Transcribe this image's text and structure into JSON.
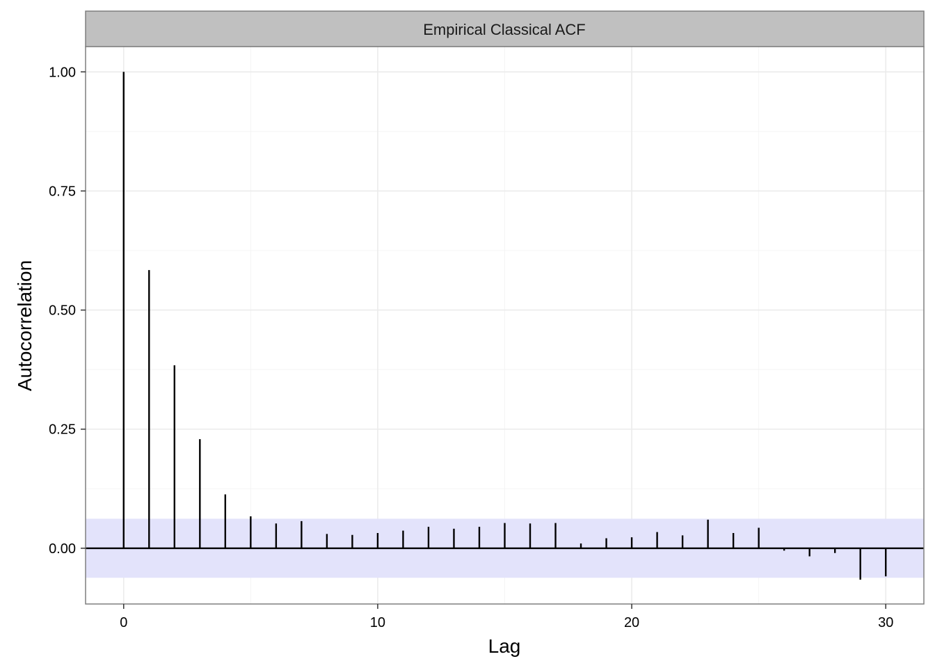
{
  "chart_data": {
    "type": "bar",
    "title": "Empirical Classical ACF",
    "xlabel": "Lag",
    "ylabel": "Autocorrelation",
    "xlim": [
      -1.5,
      31.5
    ],
    "ylim": [
      -0.117,
      1.053
    ],
    "x_ticks": [
      0,
      10,
      20,
      30
    ],
    "x_tick_labels": [
      "0",
      "10",
      "20",
      "30"
    ],
    "y_ticks": [
      0,
      0.25,
      0.5,
      0.75,
      1
    ],
    "y_tick_labels": [
      "0.00",
      "0.25",
      "0.50",
      "0.75",
      "1.00"
    ],
    "confidence_band": [
      -0.062,
      0.062
    ],
    "grid": true,
    "legend": "none",
    "colors": {
      "bars": "#000000",
      "band": "#e3e3fb",
      "strip": "#c0c0c0",
      "grid_major": "#ebebeb",
      "grid_minor": "#f4f4f4",
      "panel_border": "#7f7f7f"
    },
    "lags": [
      0,
      1,
      2,
      3,
      4,
      5,
      6,
      7,
      8,
      9,
      10,
      11,
      12,
      13,
      14,
      15,
      16,
      17,
      18,
      19,
      20,
      21,
      22,
      23,
      24,
      25,
      26,
      27,
      28,
      29,
      30
    ],
    "values": [
      1.0,
      0.584,
      0.384,
      0.229,
      0.113,
      0.067,
      0.052,
      0.057,
      0.03,
      0.028,
      0.032,
      0.037,
      0.045,
      0.041,
      0.045,
      0.053,
      0.052,
      0.053,
      0.01,
      0.021,
      0.023,
      0.034,
      0.027,
      0.06,
      0.032,
      0.043,
      -0.005,
      -0.017,
      -0.01,
      -0.066,
      -0.059
    ]
  }
}
